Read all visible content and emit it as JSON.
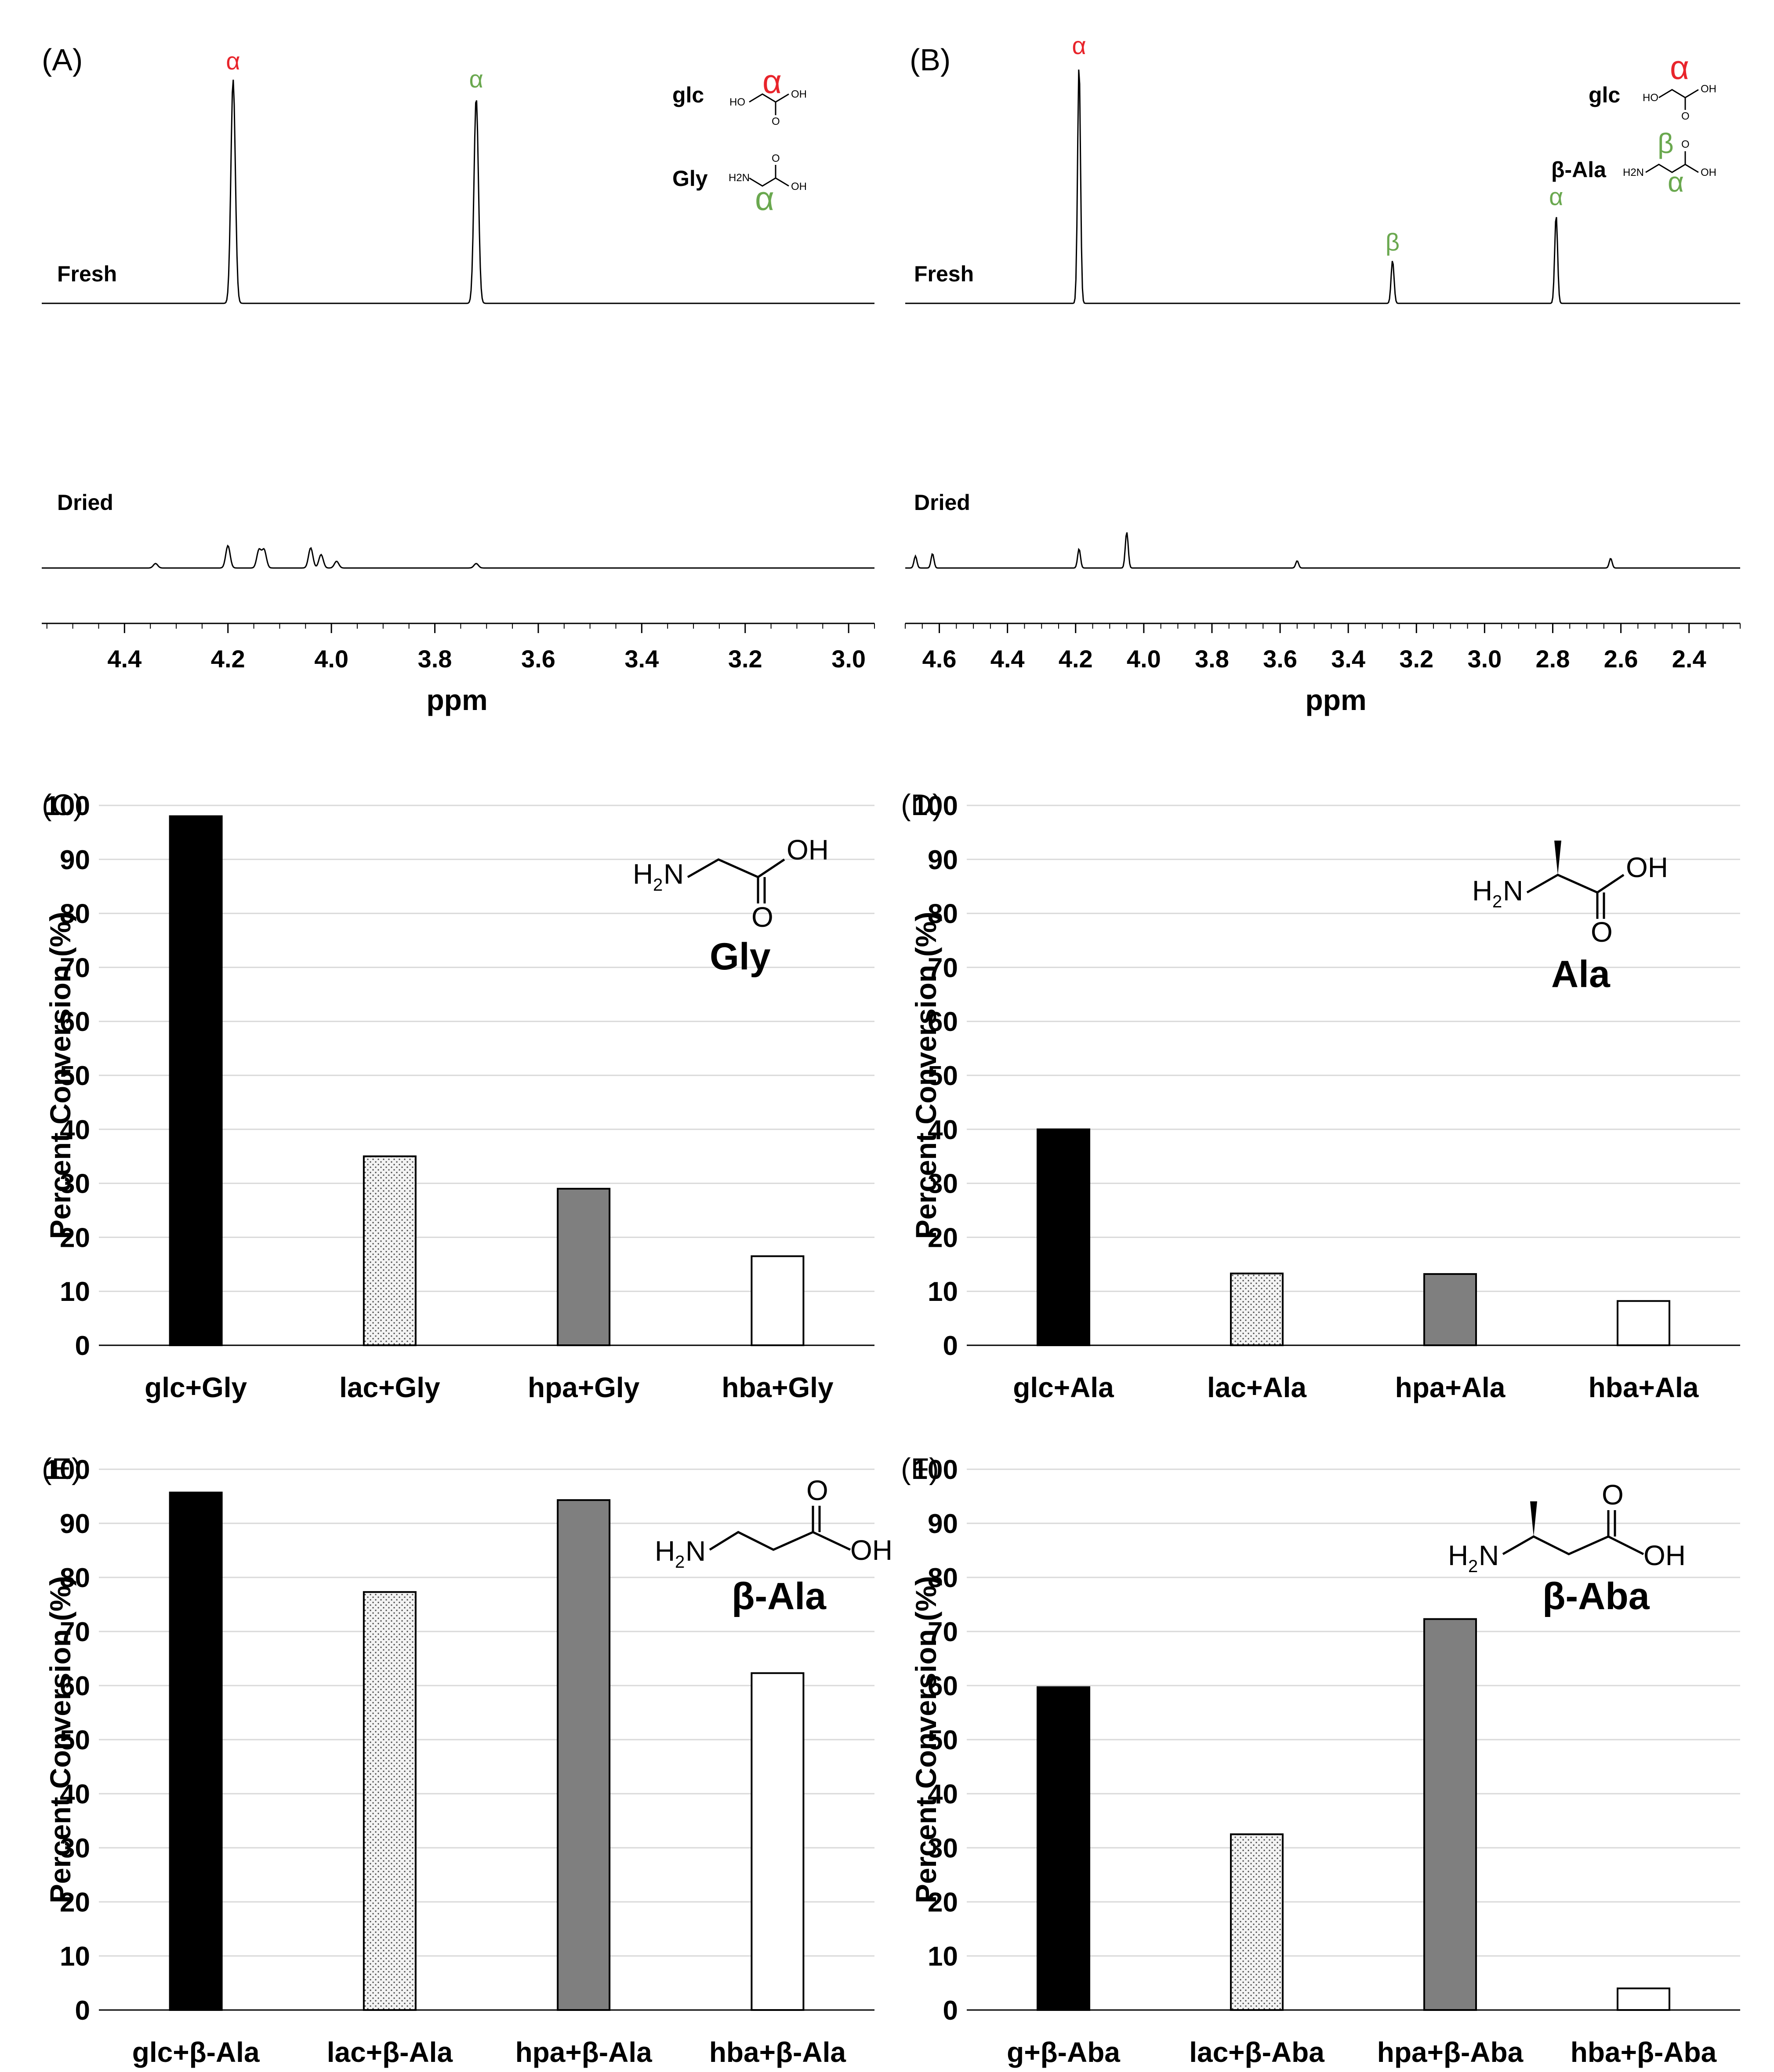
{
  "colors": {
    "red": "#e8242b",
    "green": "#6aa84f",
    "black": "#000000",
    "gray": "#7f7f7f",
    "grid": "#d9d9d9"
  },
  "chart_data": [
    {
      "panel": "(A)",
      "type": "line",
      "xlabel": "ppm",
      "x_ticks": [
        "4.4",
        "4.2",
        "4.0",
        "3.8",
        "3.6",
        "3.4",
        "3.2",
        "3.0"
      ],
      "xlim": [
        4.56,
        2.95
      ],
      "traces": [
        {
          "name": "Fresh",
          "peaks": [
            {
              "ppm": 4.19,
              "height": 1.0,
              "label": "α",
              "label_color": "red"
            },
            {
              "ppm": 3.72,
              "height": 0.92,
              "label": "α",
              "label_color": "green"
            }
          ]
        },
        {
          "name": "Dried",
          "peaks": [
            {
              "ppm": 4.2,
              "height": 0.1
            },
            {
              "ppm": 4.14,
              "height": 0.08
            },
            {
              "ppm": 4.13,
              "height": 0.08
            },
            {
              "ppm": 4.04,
              "height": 0.09
            },
            {
              "ppm": 4.02,
              "height": 0.06
            },
            {
              "ppm": 3.99,
              "height": 0.03
            },
            {
              "ppm": 4.34,
              "height": 0.02
            },
            {
              "ppm": 3.72,
              "height": 0.02
            }
          ]
        }
      ],
      "molecules": [
        {
          "name": "glc",
          "label": "α",
          "label_color": "red"
        },
        {
          "name": "Gly",
          "label": "α",
          "label_color": "green"
        }
      ]
    },
    {
      "panel": "(B)",
      "type": "line",
      "xlabel": "ppm",
      "x_ticks": [
        "4.6",
        "4.4",
        "4.2",
        "4.0",
        "3.8",
        "3.6",
        "3.4",
        "3.2",
        "3.0",
        "2.8",
        "2.6",
        "2.4"
      ],
      "xlim": [
        4.7,
        2.25
      ],
      "traces": [
        {
          "name": "Fresh",
          "peaks": [
            {
              "ppm": 4.19,
              "height": 1.0,
              "label": "α",
              "label_color": "red"
            },
            {
              "ppm": 3.27,
              "height": 0.18,
              "label": "β",
              "label_color": "green"
            },
            {
              "ppm": 2.79,
              "height": 0.37,
              "label": "α",
              "label_color": "green"
            }
          ]
        },
        {
          "name": "Dried",
          "peaks": [
            {
              "ppm": 4.67,
              "height": 0.05
            },
            {
              "ppm": 4.62,
              "height": 0.06
            },
            {
              "ppm": 4.19,
              "height": 0.08
            },
            {
              "ppm": 4.05,
              "height": 0.15
            },
            {
              "ppm": 3.55,
              "height": 0.03
            },
            {
              "ppm": 2.63,
              "height": 0.04
            }
          ]
        }
      ],
      "molecules": [
        {
          "name": "glc",
          "label": "α",
          "label_color": "red"
        },
        {
          "name": "β-Ala",
          "labels": [
            "β",
            "α"
          ],
          "label_color": "green"
        }
      ]
    },
    {
      "panel": "(C)",
      "type": "bar",
      "ylabel": "Percent Conversion (%)",
      "ylim": [
        0,
        100
      ],
      "yticks": [
        0,
        10,
        20,
        30,
        40,
        50,
        60,
        70,
        80,
        90,
        100
      ],
      "categories": [
        "glc+Gly",
        "lac+Gly",
        "hpa+Gly",
        "hba+Gly"
      ],
      "values": [
        98,
        35,
        29,
        16.5
      ],
      "molecule": "Gly"
    },
    {
      "panel": "(D)",
      "type": "bar",
      "ylabel": "Percent Conversion (%)",
      "ylim": [
        0,
        100
      ],
      "yticks": [
        0,
        10,
        20,
        30,
        40,
        50,
        60,
        70,
        80,
        90,
        100
      ],
      "categories": [
        "glc+Ala",
        "lac+Ala",
        "hpa+Ala",
        "hba+Ala"
      ],
      "values": [
        40,
        13.3,
        13.2,
        8.2
      ],
      "molecule": "Ala"
    },
    {
      "panel": "(E)",
      "type": "bar",
      "ylabel": "Percent Conversion (%)",
      "ylim": [
        0,
        100
      ],
      "yticks": [
        0,
        10,
        20,
        30,
        40,
        50,
        60,
        70,
        80,
        90,
        100
      ],
      "categories": [
        "glc+β-Ala",
        "lac+β-Ala",
        "hpa+β-Ala",
        "hba+β-Ala"
      ],
      "values": [
        95.7,
        77.3,
        94.3,
        62.3
      ],
      "molecule": "β-Ala"
    },
    {
      "panel": "(F)",
      "type": "bar",
      "ylabel": "Percent Conversion (%)",
      "ylim": [
        0,
        100
      ],
      "yticks": [
        0,
        10,
        20,
        30,
        40,
        50,
        60,
        70,
        80,
        90,
        100
      ],
      "categories": [
        "g+β-Aba",
        "lac+β-Aba",
        "hpa+β-Aba",
        "hba+β-Aba"
      ],
      "values": [
        59.7,
        32.5,
        72.3,
        4
      ],
      "molecule": "β-Aba"
    }
  ],
  "struct_text": {
    "ho": "HO",
    "oh": "OH",
    "o": "O",
    "h2n": "H2N",
    "h": "H",
    "two": "2",
    "n": "N"
  }
}
